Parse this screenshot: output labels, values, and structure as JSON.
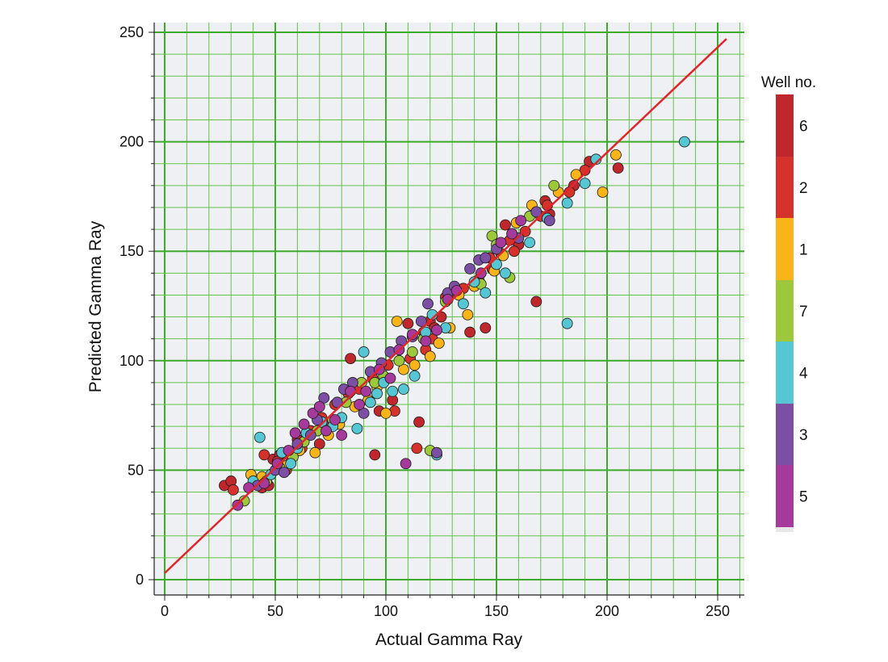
{
  "chart_data": {
    "type": "scatter",
    "title": "",
    "xlabel": "Actual Gamma Ray",
    "ylabel": "Predicted Gamma Ray",
    "xlim": [
      0,
      250
    ],
    "ylim": [
      0,
      250
    ],
    "x_ticks": [
      "0",
      "50",
      "100",
      "150",
      "200",
      "250"
    ],
    "y_ticks": [
      "0",
      "50",
      "100",
      "150",
      "200",
      "250"
    ],
    "grid": true,
    "regression_line": {
      "x": [
        0,
        254
      ],
      "y": [
        3,
        247
      ],
      "color": "#e0262a"
    },
    "legend": {
      "title": "Well no.",
      "placement": "right",
      "entries": [
        {
          "label": "6",
          "color": "#c0272d"
        },
        {
          "label": "2",
          "color": "#d6322c"
        },
        {
          "label": "1",
          "color": "#f8b418"
        },
        {
          "label": "7",
          "color": "#9dc83c"
        },
        {
          "label": "4",
          "color": "#56c6d3"
        },
        {
          "label": "3",
          "color": "#7c4fa4"
        },
        {
          "label": "5",
          "color": "#a6399c"
        }
      ]
    },
    "series": [
      {
        "name": "6",
        "color": "#c0272d",
        "points": [
          [
            27,
            43
          ],
          [
            30,
            45
          ],
          [
            44,
            42
          ],
          [
            47,
            43
          ],
          [
            49,
            55
          ],
          [
            52,
            57
          ],
          [
            57,
            56
          ],
          [
            60,
            64
          ],
          [
            70,
            62
          ],
          [
            75,
            71
          ],
          [
            84,
            101
          ],
          [
            95,
            57
          ],
          [
            97,
            77
          ],
          [
            103,
            82
          ],
          [
            110,
            117
          ],
          [
            115,
            72
          ],
          [
            117,
            113
          ],
          [
            120,
            118
          ],
          [
            122,
            115
          ],
          [
            125,
            120
          ],
          [
            138,
            113
          ],
          [
            145,
            115
          ],
          [
            148,
            142
          ],
          [
            154,
            162
          ],
          [
            157,
            158
          ],
          [
            160,
            153
          ],
          [
            168,
            127
          ],
          [
            172,
            173
          ],
          [
            174,
            167
          ],
          [
            185,
            180
          ],
          [
            192,
            191
          ],
          [
            205,
            188
          ]
        ]
      },
      {
        "name": "2",
        "color": "#d6322c",
        "points": [
          [
            31,
            41
          ],
          [
            45,
            57
          ],
          [
            51,
            54
          ],
          [
            55,
            50
          ],
          [
            62,
            60
          ],
          [
            66,
            68
          ],
          [
            71,
            74
          ],
          [
            77,
            80
          ],
          [
            83,
            85
          ],
          [
            88,
            87
          ],
          [
            94,
            92
          ],
          [
            101,
            98
          ],
          [
            104,
            77
          ],
          [
            111,
            101
          ],
          [
            114,
            60
          ],
          [
            118,
            105
          ],
          [
            121,
            110
          ],
          [
            127,
            129
          ],
          [
            131,
            131
          ],
          [
            135,
            133
          ],
          [
            142,
            137
          ],
          [
            147,
            147
          ],
          [
            152,
            149
          ],
          [
            156,
            155
          ],
          [
            158,
            150
          ],
          [
            163,
            159
          ],
          [
            170,
            166
          ],
          [
            173,
            171
          ],
          [
            183,
            177
          ],
          [
            190,
            187
          ]
        ]
      },
      {
        "name": "1",
        "color": "#f8b418",
        "points": [
          [
            39,
            48
          ],
          [
            44,
            47
          ],
          [
            55,
            52
          ],
          [
            61,
            59
          ],
          [
            68,
            58
          ],
          [
            74,
            66
          ],
          [
            79,
            71
          ],
          [
            86,
            79
          ],
          [
            92,
            82
          ],
          [
            96,
            88
          ],
          [
            100,
            76
          ],
          [
            105,
            118
          ],
          [
            108,
            96
          ],
          [
            113,
            98
          ],
          [
            120,
            102
          ],
          [
            124,
            108
          ],
          [
            129,
            115
          ],
          [
            133,
            130
          ],
          [
            137,
            121
          ],
          [
            140,
            134
          ],
          [
            149,
            141
          ],
          [
            153,
            148
          ],
          [
            159,
            163
          ],
          [
            166,
            171
          ],
          [
            178,
            177
          ],
          [
            186,
            185
          ],
          [
            198,
            177
          ],
          [
            204,
            194
          ]
        ]
      },
      {
        "name": "7",
        "color": "#9dc83c",
        "points": [
          [
            36,
            36
          ],
          [
            46,
            45
          ],
          [
            52,
            51
          ],
          [
            58,
            56
          ],
          [
            63,
            63
          ],
          [
            69,
            68
          ],
          [
            76,
            73
          ],
          [
            82,
            81
          ],
          [
            89,
            90
          ],
          [
            95,
            90
          ],
          [
            99,
            93
          ],
          [
            106,
            100
          ],
          [
            112,
            104
          ],
          [
            117,
            110
          ],
          [
            120,
            59
          ],
          [
            127,
            127
          ],
          [
            143,
            135
          ],
          [
            148,
            157
          ],
          [
            150,
            153
          ],
          [
            156,
            138
          ],
          [
            165,
            166
          ],
          [
            176,
            180
          ]
        ]
      },
      {
        "name": "4",
        "color": "#56c6d3",
        "points": [
          [
            40,
            45
          ],
          [
            43,
            65
          ],
          [
            48,
            48
          ],
          [
            53,
            58
          ],
          [
            57,
            53
          ],
          [
            60,
            60
          ],
          [
            64,
            67
          ],
          [
            71,
            72
          ],
          [
            76,
            70
          ],
          [
            80,
            74
          ],
          [
            87,
            69
          ],
          [
            90,
            104
          ],
          [
            93,
            81
          ],
          [
            96,
            85
          ],
          [
            99,
            90
          ],
          [
            103,
            86
          ],
          [
            108,
            87
          ],
          [
            113,
            93
          ],
          [
            118,
            113
          ],
          [
            121,
            121
          ],
          [
            123,
            57
          ],
          [
            127,
            115
          ],
          [
            135,
            126
          ],
          [
            140,
            136
          ],
          [
            145,
            131
          ],
          [
            150,
            144
          ],
          [
            154,
            140
          ],
          [
            165,
            154
          ],
          [
            173,
            165
          ],
          [
            182,
            117
          ],
          [
            182,
            172
          ],
          [
            190,
            181
          ],
          [
            195,
            192
          ],
          [
            235,
            200
          ]
        ]
      },
      {
        "name": "3",
        "color": "#7c4fa4",
        "points": [
          [
            42,
            43
          ],
          [
            50,
            50
          ],
          [
            54,
            49
          ],
          [
            60,
            62
          ],
          [
            66,
            66
          ],
          [
            69,
            73
          ],
          [
            72,
            83
          ],
          [
            78,
            81
          ],
          [
            81,
            87
          ],
          [
            85,
            90
          ],
          [
            90,
            76
          ],
          [
            93,
            95
          ],
          [
            98,
            99
          ],
          [
            102,
            104
          ],
          [
            107,
            109
          ],
          [
            112,
            111
          ],
          [
            116,
            118
          ],
          [
            119,
            126
          ],
          [
            123,
            58
          ],
          [
            128,
            131
          ],
          [
            131,
            134
          ],
          [
            138,
            142
          ],
          [
            142,
            146
          ],
          [
            145,
            147
          ],
          [
            150,
            151
          ],
          [
            160,
            156
          ],
          [
            168,
            168
          ],
          [
            174,
            164
          ]
        ]
      },
      {
        "name": "5",
        "color": "#a6399c",
        "points": [
          [
            33,
            34
          ],
          [
            38,
            42
          ],
          [
            45,
            44
          ],
          [
            51,
            53
          ],
          [
            56,
            59
          ],
          [
            59,
            67
          ],
          [
            63,
            71
          ],
          [
            67,
            76
          ],
          [
            70,
            79
          ],
          [
            73,
            68
          ],
          [
            77,
            73
          ],
          [
            80,
            66
          ],
          [
            84,
            86
          ],
          [
            88,
            80
          ],
          [
            91,
            86
          ],
          [
            97,
            96
          ],
          [
            102,
            92
          ],
          [
            106,
            105
          ],
          [
            109,
            53
          ],
          [
            112,
            112
          ],
          [
            118,
            109
          ],
          [
            123,
            114
          ],
          [
            128,
            128
          ],
          [
            132,
            132
          ],
          [
            143,
            140
          ],
          [
            152,
            154
          ],
          [
            157,
            158
          ],
          [
            161,
            164
          ]
        ]
      }
    ]
  }
}
